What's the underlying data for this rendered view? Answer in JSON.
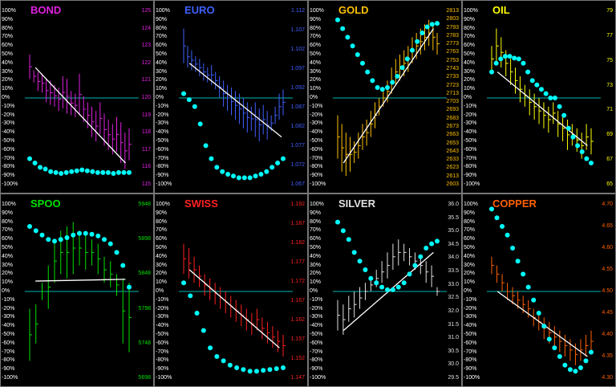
{
  "pct_axis": [
    "100%",
    "90%",
    "80%",
    "70%",
    "60%",
    "50%",
    "40%",
    "30%",
    "20%",
    "10%",
    "0%",
    "-10%",
    "-20%",
    "-30%",
    "-40%",
    "-50%",
    "-60%",
    "-70%",
    "-80%",
    "-90%",
    "-100%"
  ],
  "colors": {
    "zero_line": "#00b4b4",
    "trend_line": "#ffffff",
    "dots": "#00ffff",
    "background": "#000000",
    "border": "#777777"
  },
  "chart_data": [
    {
      "type": "ohlc-bars",
      "name": "BOND",
      "title": "BOND",
      "color": "#e020e0",
      "price_ticks": [
        "125",
        "124",
        "123",
        "122",
        "121",
        "120",
        "119",
        "118",
        "117",
        "116",
        "115"
      ],
      "price_range": [
        115,
        125
      ],
      "bars_pct": [
        [
          50,
          22
        ],
        [
          32,
          18
        ],
        [
          30,
          8
        ],
        [
          28,
          6
        ],
        [
          22,
          -5
        ],
        [
          20,
          -8
        ],
        [
          15,
          -10
        ],
        [
          12,
          -15
        ],
        [
          25,
          -12
        ],
        [
          22,
          -18
        ],
        [
          8,
          -20
        ],
        [
          5,
          -22
        ],
        [
          28,
          -20
        ],
        [
          2,
          -28
        ],
        [
          -5,
          -35
        ],
        [
          -10,
          -45
        ],
        [
          -15,
          -50
        ],
        [
          -5,
          -42
        ],
        [
          -18,
          -55
        ],
        [
          -25,
          -60
        ],
        [
          -30,
          -65
        ],
        [
          -22,
          -62
        ],
        [
          -28,
          -75
        ],
        [
          -40,
          -82
        ],
        [
          -35,
          -72
        ]
      ],
      "trend_pct": [
        [
          0.1,
          35
        ],
        [
          0.95,
          -75
        ]
      ],
      "dots_pct": [
        -70,
        -75,
        -80,
        -82,
        -85,
        -86,
        -87,
        -86,
        -85,
        -84,
        -83,
        -84,
        -85,
        -86,
        -86,
        -86,
        -87,
        -86,
        -86,
        -86
      ]
    },
    {
      "type": "ohlc-bars",
      "name": "EURO",
      "title": "EURO",
      "color": "#4060ff",
      "price_ticks": [
        "1.112",
        "1.107",
        "1.102",
        "1.097",
        "1.092",
        "1.087",
        "1.082",
        "1.077",
        "1.072",
        "1.067"
      ],
      "price_range": [
        1.067,
        1.112
      ],
      "bars_pct": [
        [
          80,
          40
        ],
        [
          60,
          35
        ],
        [
          55,
          32
        ],
        [
          48,
          30
        ],
        [
          45,
          25
        ],
        [
          40,
          20
        ],
        [
          35,
          18
        ],
        [
          38,
          15
        ],
        [
          30,
          10
        ],
        [
          25,
          0
        ],
        [
          20,
          -10
        ],
        [
          15,
          -15
        ],
        [
          12,
          -20
        ],
        [
          8,
          -25
        ],
        [
          5,
          -30
        ],
        [
          0,
          -35
        ],
        [
          -5,
          -40
        ],
        [
          -10,
          -38
        ],
        [
          -5,
          -45
        ],
        [
          -12,
          -50
        ],
        [
          -8,
          -42
        ],
        [
          -15,
          -48
        ],
        [
          -20,
          -38
        ],
        [
          -10,
          -30
        ],
        [
          5,
          -25
        ],
        [
          10,
          -20
        ]
      ],
      "trend_pct": [
        [
          0.1,
          40
        ],
        [
          0.97,
          -45
        ]
      ],
      "dots_pct": [
        5,
        -2,
        -10,
        -30,
        -55,
        -70,
        -80,
        -85,
        -88,
        -90,
        -92,
        -92,
        -92,
        -90,
        -88,
        -85,
        -80,
        -75,
        -70
      ]
    },
    {
      "type": "ohlc-bars",
      "name": "GOLD",
      "title": "GOLD",
      "color": "#ffc000",
      "price_ticks": [
        "2813",
        "2803",
        "2793",
        "2783",
        "2773",
        "2763",
        "2753",
        "2743",
        "2733",
        "2723",
        "2713",
        "2703",
        "2693",
        "2683",
        "2673",
        "2663",
        "2653",
        "2643",
        "2633",
        "2623",
        "2613",
        "2603"
      ],
      "price_range": [
        2603,
        2813
      ],
      "bars_pct": [
        [
          -20,
          -70
        ],
        [
          -30,
          -85
        ],
        [
          -40,
          -90
        ],
        [
          -45,
          -85
        ],
        [
          -50,
          -75
        ],
        [
          -40,
          -70
        ],
        [
          -30,
          -60
        ],
        [
          -25,
          -55
        ],
        [
          -15,
          -45
        ],
        [
          -5,
          -35
        ],
        [
          0,
          -20
        ],
        [
          10,
          -10
        ],
        [
          20,
          -5
        ],
        [
          35,
          5
        ],
        [
          45,
          15
        ],
        [
          50,
          20
        ],
        [
          55,
          25
        ],
        [
          60,
          30
        ],
        [
          70,
          40
        ],
        [
          75,
          45
        ],
        [
          80,
          50
        ],
        [
          85,
          55
        ],
        [
          90,
          60
        ],
        [
          85,
          55
        ],
        [
          75,
          50
        ]
      ],
      "trend_pct": [
        [
          0.1,
          -75
        ],
        [
          0.95,
          80
        ]
      ],
      "dots_pct": [
        90,
        80,
        70,
        60,
        50,
        40,
        30,
        20,
        12,
        10,
        12,
        18,
        25,
        35,
        45,
        55,
        65,
        75,
        82,
        85,
        86
      ]
    },
    {
      "type": "ohlc-bars",
      "name": "OIL",
      "title": "OIL",
      "color": "#ffff00",
      "price_ticks": [
        "79",
        "77",
        "75",
        "73",
        "71",
        "69",
        "67",
        "65"
      ],
      "price_range": [
        65,
        79
      ],
      "bars_pct": [
        [
          60,
          30
        ],
        [
          80,
          40
        ],
        [
          70,
          35
        ],
        [
          55,
          25
        ],
        [
          45,
          15
        ],
        [
          35,
          5
        ],
        [
          25,
          -5
        ],
        [
          15,
          -10
        ],
        [
          10,
          -20
        ],
        [
          5,
          -25
        ],
        [
          0,
          -30
        ],
        [
          -5,
          -35
        ],
        [
          -10,
          -40
        ],
        [
          -5,
          -30
        ],
        [
          -15,
          -45
        ],
        [
          -20,
          -50
        ],
        [
          -25,
          -60
        ],
        [
          -30,
          -55
        ],
        [
          -35,
          -62
        ],
        [
          -40,
          -70
        ],
        [
          -30,
          -60
        ],
        [
          -35,
          -65
        ]
      ],
      "trend_pct": [
        [
          0.1,
          30
        ],
        [
          0.95,
          -55
        ]
      ],
      "dots_pct": [
        30,
        40,
        45,
        48,
        48,
        46,
        45,
        40,
        30,
        20,
        15,
        10,
        5,
        0,
        0,
        -10,
        -20,
        -35,
        -45,
        -55,
        -62,
        -70,
        -75
      ]
    },
    {
      "type": "ohlc-bars",
      "name": "SPOO",
      "title": "SPOO",
      "color": "#00e000",
      "price_ticks": [
        "5948",
        "5898",
        "5848",
        "5798",
        "5748",
        "5698"
      ],
      "price_range": [
        5698,
        5948
      ],
      "bars_pct": [
        [
          -20,
          -80
        ],
        [
          -15,
          -60
        ],
        [
          10,
          -10
        ],
        [
          30,
          -20
        ],
        [
          60,
          10
        ],
        [
          70,
          20
        ],
        [
          75,
          15
        ],
        [
          80,
          20
        ],
        [
          70,
          30
        ],
        [
          65,
          25
        ],
        [
          60,
          30
        ],
        [
          55,
          20
        ],
        [
          40,
          10
        ],
        [
          35,
          5
        ],
        [
          20,
          -5
        ],
        [
          15,
          -60
        ],
        [
          10,
          -70
        ]
      ],
      "trend_pct": [
        [
          0.1,
          12
        ],
        [
          0.95,
          14
        ]
      ],
      "dots_pct": [
        75,
        70,
        65,
        60,
        58,
        60,
        62,
        65,
        67,
        67,
        66,
        64,
        60,
        55,
        45,
        30,
        5
      ]
    },
    {
      "type": "ohlc-bars",
      "name": "SWISS",
      "title": "SWISS",
      "color": "#ff2020",
      "price_ticks": [
        "1.192",
        "1.187",
        "1.182",
        "1.177",
        "1.172",
        "1.167",
        "1.162",
        "1.157",
        "1.152",
        "1.147"
      ],
      "price_range": [
        1.147,
        1.192
      ],
      "bars_pct": [
        [
          55,
          20
        ],
        [
          50,
          15
        ],
        [
          40,
          10
        ],
        [
          30,
          5
        ],
        [
          20,
          -5
        ],
        [
          15,
          -10
        ],
        [
          10,
          -15
        ],
        [
          5,
          -20
        ],
        [
          0,
          -25
        ],
        [
          -5,
          -30
        ],
        [
          -10,
          -35
        ],
        [
          -15,
          -40
        ],
        [
          -20,
          -45
        ],
        [
          -25,
          -50
        ],
        [
          -20,
          -45
        ],
        [
          -30,
          -55
        ],
        [
          -35,
          -60
        ],
        [
          -40,
          -65
        ],
        [
          -45,
          -70
        ],
        [
          -50,
          -75
        ]
      ],
      "trend_pct": [
        [
          0.1,
          25
        ],
        [
          0.95,
          -65
        ]
      ],
      "dots_pct": [
        10,
        -5,
        -25,
        -45,
        -65,
        -75,
        -80,
        -85,
        -88,
        -90,
        -92,
        -92,
        -91,
        -90,
        -89,
        -88
      ]
    },
    {
      "type": "ohlc-bars",
      "name": "SILVER",
      "title": "SILVER",
      "color": "#e0e0e0",
      "price_ticks": [
        "36.0",
        "35.5",
        "35.0",
        "34.5",
        "34.0",
        "33.5",
        "33.0",
        "32.5",
        "32.0",
        "31.5",
        "31.0",
        "30.5",
        "30.0",
        "29.5"
      ],
      "price_range": [
        29.5,
        36.0
      ],
      "bars_pct": [
        [
          -10,
          -45
        ],
        [
          -15,
          -50
        ],
        [
          -5,
          -35
        ],
        [
          0,
          -30
        ],
        [
          5,
          -20
        ],
        [
          10,
          -10
        ],
        [
          15,
          0
        ],
        [
          25,
          5
        ],
        [
          35,
          10
        ],
        [
          45,
          15
        ],
        [
          55,
          25
        ],
        [
          60,
          30
        ],
        [
          55,
          35
        ],
        [
          50,
          30
        ],
        [
          45,
          25
        ],
        [
          40,
          20
        ],
        [
          35,
          10
        ],
        [
          30,
          5
        ],
        [
          5,
          -5
        ]
      ],
      "trend_pct": [
        [
          0.1,
          -45
        ],
        [
          0.95,
          45
        ]
      ],
      "dots_pct": [
        80,
        70,
        60,
        45,
        35,
        25,
        15,
        10,
        5,
        2,
        2,
        5,
        10,
        20,
        30,
        40,
        50,
        55,
        58
      ]
    },
    {
      "type": "ohlc-bars",
      "name": "COPPER",
      "title": "COPPER",
      "color": "#ff6000",
      "price_ticks": [
        "4.70",
        "4.65",
        "4.60",
        "4.55",
        "4.50",
        "4.45",
        "4.40",
        "4.35",
        "4.30"
      ],
      "price_range": [
        4.3,
        4.7
      ],
      "bars_pct": [
        [
          40,
          20
        ],
        [
          30,
          10
        ],
        [
          20,
          0
        ],
        [
          10,
          -10
        ],
        [
          5,
          -15
        ],
        [
          0,
          -20
        ],
        [
          -5,
          -25
        ],
        [
          -10,
          -30
        ],
        [
          -20,
          -40
        ],
        [
          -25,
          -45
        ],
        [
          -30,
          -55
        ],
        [
          -35,
          -60
        ],
        [
          -40,
          -65
        ],
        [
          -45,
          -70
        ],
        [
          -50,
          -75
        ],
        [
          -55,
          -80
        ],
        [
          -60,
          -85
        ],
        [
          -55,
          -80
        ],
        [
          -50,
          -75
        ],
        [
          -45,
          -70
        ]
      ],
      "trend_pct": [
        [
          0.1,
          0
        ],
        [
          0.95,
          -75
        ]
      ],
      "dots_pct": [
        95,
        85,
        75,
        65,
        50,
        35,
        20,
        5,
        -10,
        -25,
        -40,
        -55,
        -65,
        -75,
        -85,
        -90,
        -92,
        -88,
        -80,
        -70
      ]
    }
  ]
}
